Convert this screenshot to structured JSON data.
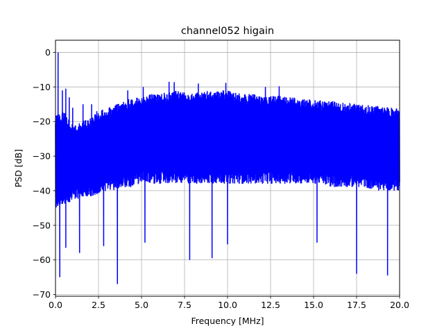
{
  "chart_data": {
    "type": "line",
    "title": "channel052 higain",
    "xlabel": "Frequency [MHz]",
    "ylabel": "PSD [dB]",
    "xlim": [
      0,
      20
    ],
    "ylim": [
      -70.5,
      3.5
    ],
    "xticks": [
      0,
      2.5,
      5,
      7.5,
      10,
      12.5,
      15,
      17.5,
      20
    ],
    "xtick_labels": [
      "0.0",
      "2.5",
      "5.0",
      "7.5",
      "10.0",
      "12.5",
      "15.0",
      "17.5",
      "20.0"
    ],
    "yticks": [
      0,
      -10,
      -20,
      -30,
      -40,
      -50,
      -60,
      -70
    ],
    "ytick_labels": [
      "0",
      "−10",
      "−20",
      "−30",
      "−40",
      "−50",
      "−60",
      "−70"
    ],
    "grid": true,
    "legend": false,
    "series": [
      {
        "color": "#0000ff",
        "envelope_x": [
          0,
          0.5,
          1,
          1.5,
          2,
          2.5,
          3,
          3.5,
          4,
          4.5,
          5,
          5.5,
          6,
          6.5,
          7,
          7.5,
          8,
          8.5,
          9,
          9.5,
          10,
          10.5,
          11,
          11.5,
          12,
          12.5,
          13,
          13.5,
          14,
          14.5,
          15,
          15.5,
          16,
          16.5,
          17,
          17.5,
          18,
          18.5,
          19,
          19.5,
          20
        ],
        "upper_envelope": [
          -18,
          -17,
          -21,
          -20,
          -19,
          -17,
          -16,
          -15,
          -14,
          -13,
          -13,
          -12,
          -12,
          -11.5,
          -11,
          -11.5,
          -11.5,
          -11.5,
          -11,
          -11,
          -11,
          -11.5,
          -12,
          -12,
          -12.5,
          -12.5,
          -12.5,
          -13,
          -13,
          -13.5,
          -13.5,
          -14,
          -14,
          -14.5,
          -14.5,
          -15,
          -15,
          -15.5,
          -15.5,
          -16,
          -16
        ],
        "lower_envelope": [
          -45,
          -44,
          -43,
          -42,
          -42,
          -41,
          -40,
          -40,
          -39,
          -39,
          -38,
          -38,
          -38,
          -38,
          -38,
          -38,
          -38,
          -38,
          -38,
          -38,
          -38,
          -38,
          -38,
          -38,
          -38,
          -38,
          -38,
          -38,
          -38,
          -38,
          -38,
          -38,
          -39,
          -39,
          -39,
          -39,
          -39,
          -40,
          -40,
          -40,
          -40
        ],
        "peaks": [
          {
            "x": 0.15,
            "y": 0
          },
          {
            "x": 0.4,
            "y": -11
          },
          {
            "x": 0.6,
            "y": -10.5
          },
          {
            "x": 0.8,
            "y": -13
          },
          {
            "x": 1.0,
            "y": -16
          },
          {
            "x": 1.6,
            "y": -15
          },
          {
            "x": 2.1,
            "y": -15
          },
          {
            "x": 2.4,
            "y": -17
          },
          {
            "x": 4.2,
            "y": -11
          },
          {
            "x": 5.1,
            "y": -10
          },
          {
            "x": 6.6,
            "y": -8.5
          },
          {
            "x": 6.9,
            "y": -8.6
          },
          {
            "x": 8.3,
            "y": -9
          },
          {
            "x": 9.9,
            "y": -8.8
          },
          {
            "x": 12.2,
            "y": -10
          },
          {
            "x": 13.0,
            "y": -9.8
          }
        ],
        "dips": [
          {
            "x": 0.25,
            "y": -65
          },
          {
            "x": 0.6,
            "y": -56.5
          },
          {
            "x": 1.4,
            "y": -58
          },
          {
            "x": 2.8,
            "y": -56
          },
          {
            "x": 3.6,
            "y": -67
          },
          {
            "x": 5.2,
            "y": -55
          },
          {
            "x": 7.8,
            "y": -60
          },
          {
            "x": 9.1,
            "y": -59.5
          },
          {
            "x": 10.0,
            "y": -55.5
          },
          {
            "x": 15.2,
            "y": -55
          },
          {
            "x": 17.5,
            "y": -64
          },
          {
            "x": 19.3,
            "y": -64.5
          }
        ]
      }
    ]
  }
}
